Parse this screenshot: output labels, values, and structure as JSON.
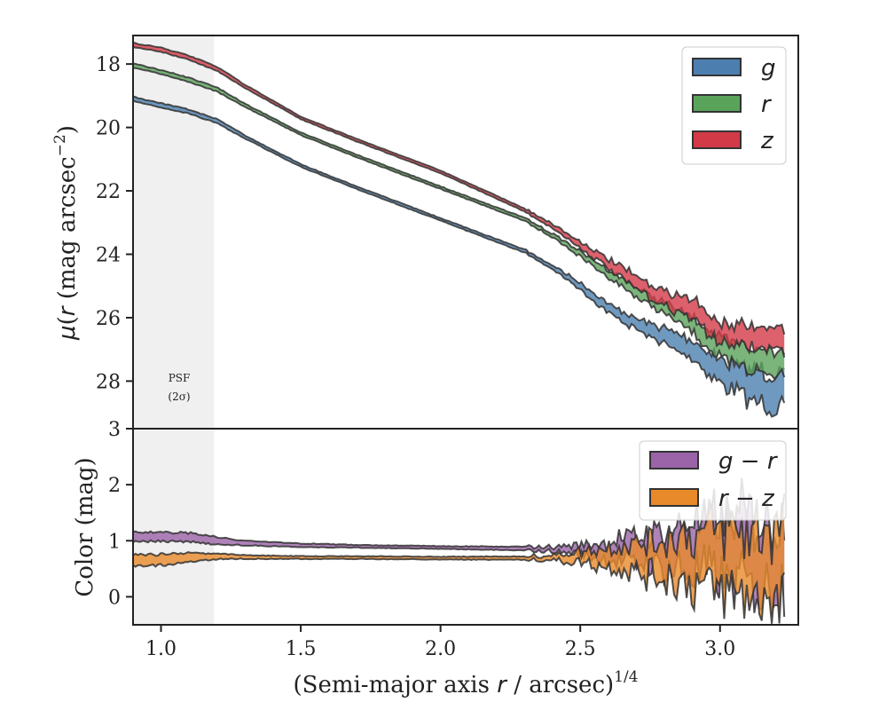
{
  "colors": {
    "g": "#4c7fb0",
    "r": "#5aa35a",
    "z": "#d33a47",
    "gr": "#9b63a8",
    "rz": "#e8892a",
    "edge": "#333333",
    "psf": "#f0f0f0"
  },
  "chart_data": [
    {
      "type": "area",
      "name": "surface-brightness",
      "ylabel": "μ(r) (mag arcsec⁻²)",
      "ylabel_parts": {
        "mu": "μ",
        "r": "r",
        "mid": " (mag arcsec",
        "exp": "−2",
        "end": ")"
      },
      "xlim": [
        0.9,
        3.28
      ],
      "ylim": [
        29.5,
        17.1
      ],
      "yticks": [
        18,
        20,
        22,
        24,
        26,
        28
      ],
      "ytick_labels": [
        "18",
        "20",
        "22",
        "24",
        "26",
        "28"
      ],
      "psf_label": [
        "PSF",
        "(2σ)"
      ],
      "psf_x": [
        0.9,
        1.19
      ],
      "legend": [
        {
          "key": "g",
          "label": "g"
        },
        {
          "key": "r",
          "label": "r"
        },
        {
          "key": "z",
          "label": "z"
        }
      ],
      "series": [
        {
          "name": "g",
          "x": [
            0.9,
            1.0,
            1.1,
            1.2,
            1.3,
            1.5,
            1.7,
            2.0,
            2.3,
            2.4,
            2.5,
            2.6,
            2.7,
            2.8,
            2.9,
            3.0,
            3.1,
            3.2,
            3.23
          ],
          "y": [
            19.1,
            19.3,
            19.5,
            19.8,
            20.3,
            21.2,
            21.9,
            22.9,
            23.9,
            24.4,
            25.0,
            25.7,
            26.2,
            26.6,
            27.0,
            27.7,
            28.1,
            28.3,
            28.3
          ],
          "err": [
            0.08,
            0.08,
            0.08,
            0.08,
            0.06,
            0.05,
            0.05,
            0.05,
            0.06,
            0.08,
            0.12,
            0.18,
            0.22,
            0.3,
            0.35,
            0.5,
            0.6,
            0.65,
            0.65
          ]
        },
        {
          "name": "r",
          "x": [
            0.9,
            1.0,
            1.1,
            1.2,
            1.3,
            1.5,
            1.7,
            2.0,
            2.3,
            2.4,
            2.5,
            2.6,
            2.7,
            2.8,
            2.9,
            3.0,
            3.1,
            3.2,
            3.23
          ],
          "y": [
            18.05,
            18.25,
            18.5,
            18.8,
            19.3,
            20.2,
            20.9,
            21.9,
            22.9,
            23.4,
            24.0,
            24.6,
            25.2,
            25.7,
            26.2,
            27.0,
            27.3,
            27.4,
            27.4
          ],
          "err": [
            0.08,
            0.08,
            0.08,
            0.08,
            0.06,
            0.05,
            0.05,
            0.05,
            0.06,
            0.08,
            0.1,
            0.14,
            0.18,
            0.22,
            0.28,
            0.4,
            0.45,
            0.45,
            0.45
          ]
        },
        {
          "name": "z",
          "x": [
            0.9,
            1.0,
            1.1,
            1.2,
            1.3,
            1.5,
            1.7,
            2.0,
            2.3,
            2.4,
            2.5,
            2.6,
            2.7,
            2.8,
            2.9,
            3.0,
            3.1,
            3.2,
            3.23
          ],
          "y": [
            17.4,
            17.55,
            17.8,
            18.15,
            18.7,
            19.7,
            20.4,
            21.4,
            22.6,
            23.1,
            23.7,
            24.3,
            24.9,
            25.4,
            25.7,
            26.5,
            26.6,
            26.7,
            26.7
          ],
          "err": [
            0.08,
            0.08,
            0.08,
            0.08,
            0.06,
            0.05,
            0.05,
            0.05,
            0.06,
            0.08,
            0.12,
            0.18,
            0.25,
            0.3,
            0.38,
            0.4,
            0.4,
            0.45,
            0.45
          ]
        }
      ]
    },
    {
      "type": "area",
      "name": "color-profile",
      "ylabel": "Color (mag)",
      "xlabel_parts": {
        "pre": "(Semi-major axis ",
        "r": "r",
        "mid": " / arcsec)",
        "exp": "1/4"
      },
      "xlim": [
        0.9,
        3.28
      ],
      "ylim": [
        -0.5,
        3.0
      ],
      "yticks": [
        0,
        1,
        2,
        3
      ],
      "ytick_labels": [
        "0",
        "1",
        "2",
        "3"
      ],
      "xticks": [
        1.0,
        1.5,
        2.0,
        2.5,
        3.0
      ],
      "xtick_labels": [
        "1.0",
        "1.5",
        "2.0",
        "2.5",
        "3.0"
      ],
      "legend": [
        {
          "key": "gr",
          "label": "g − r"
        },
        {
          "key": "rz",
          "label": "r − z"
        }
      ],
      "series": [
        {
          "name": "g − r",
          "x": [
            0.9,
            1.0,
            1.1,
            1.2,
            1.3,
            1.5,
            1.7,
            2.0,
            2.3,
            2.4,
            2.5,
            2.6,
            2.7,
            2.8,
            2.9,
            3.0,
            3.1,
            3.2,
            3.23
          ],
          "y": [
            1.07,
            1.07,
            1.06,
            1.0,
            0.96,
            0.92,
            0.9,
            0.88,
            0.86,
            0.85,
            0.84,
            0.82,
            0.83,
            0.85,
            0.9,
            0.85,
            0.8,
            0.8,
            0.8
          ],
          "err": [
            0.1,
            0.1,
            0.1,
            0.08,
            0.05,
            0.04,
            0.03,
            0.03,
            0.04,
            0.05,
            0.1,
            0.2,
            0.3,
            0.4,
            0.55,
            0.7,
            0.75,
            0.8,
            0.8
          ]
        },
        {
          "name": "r − z",
          "x": [
            0.9,
            1.0,
            1.1,
            1.2,
            1.3,
            1.5,
            1.7,
            2.0,
            2.3,
            2.4,
            2.5,
            2.6,
            2.7,
            2.8,
            2.9,
            3.0,
            3.1,
            3.2,
            3.23
          ],
          "y": [
            0.65,
            0.66,
            0.7,
            0.72,
            0.71,
            0.7,
            0.7,
            0.69,
            0.69,
            0.7,
            0.71,
            0.72,
            0.7,
            0.68,
            0.66,
            0.65,
            0.6,
            0.65,
            0.65
          ],
          "err": [
            0.12,
            0.12,
            0.1,
            0.06,
            0.04,
            0.03,
            0.03,
            0.03,
            0.04,
            0.05,
            0.12,
            0.2,
            0.3,
            0.4,
            0.55,
            0.7,
            0.75,
            0.8,
            0.8
          ]
        }
      ]
    }
  ]
}
